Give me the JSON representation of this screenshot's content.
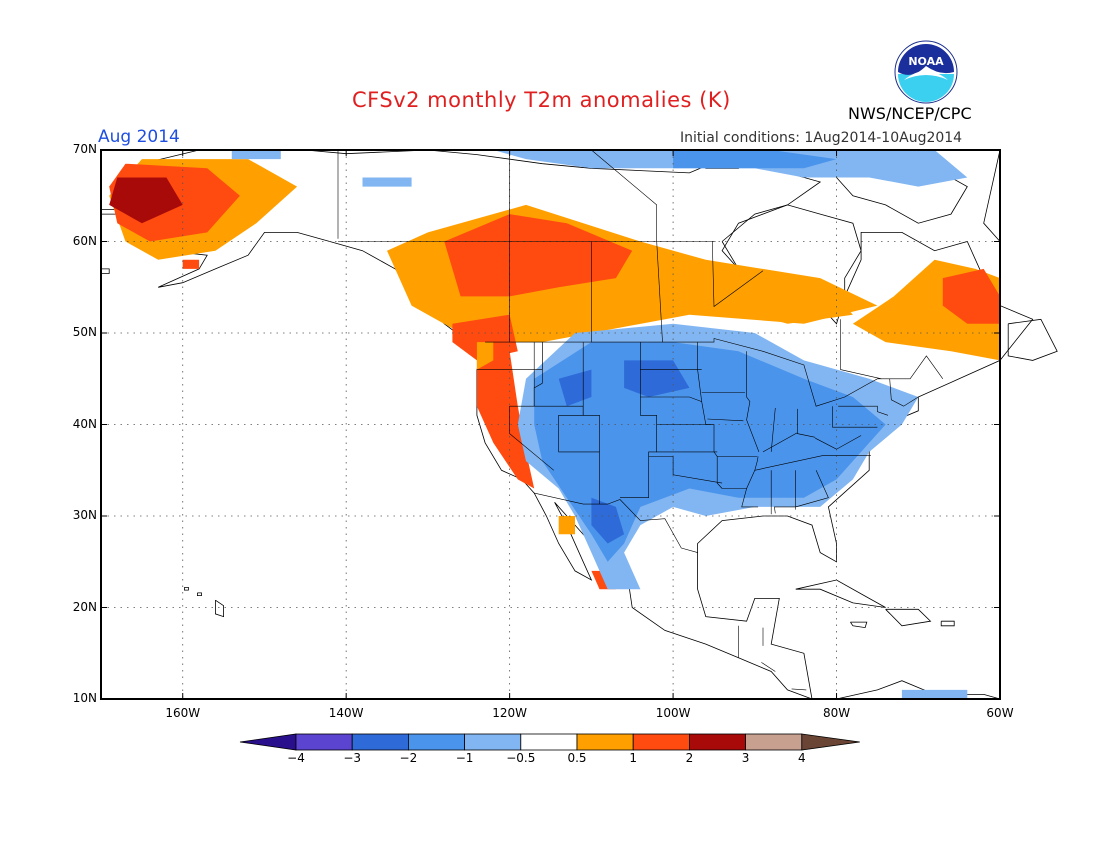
{
  "header": {
    "title": "CFSv2 monthly T2m anomalies (K)",
    "month": "Aug 2014",
    "initial_conditions": "Initial conditions: 1Aug2014-10Aug2014",
    "agency": "NWS/NCEP/CPC",
    "logo_text": "NOAA"
  },
  "map": {
    "lat_labels": [
      "70N",
      "60N",
      "50N",
      "40N",
      "30N",
      "20N",
      "10N"
    ],
    "lon_labels": [
      "160W",
      "140W",
      "120W",
      "100W",
      "80W",
      "60W"
    ],
    "extent": {
      "lon": [
        -170,
        -60
      ],
      "lat": [
        10,
        70
      ]
    }
  },
  "colorbar": {
    "labels": [
      "−4",
      "−3",
      "−2",
      "−1",
      "−0.5",
      "0.5",
      "1",
      "2",
      "3",
      "4"
    ],
    "colors": [
      "#2a0f8c",
      "#5a44d0",
      "#2e6ad8",
      "#4a94ec",
      "#82b6f2",
      "#ffffff",
      "#ffa000",
      "#ff4a10",
      "#a80a0a",
      "#c8a090",
      "#6a4434"
    ]
  },
  "anomaly_colors": {
    "cool_strong": "#2e6ad8",
    "cool": "#4a94ec",
    "cool_weak": "#82b6f2",
    "warm_weak": "#ffa000",
    "warm": "#ff4a10",
    "warm_strong": "#a80a0a"
  }
}
